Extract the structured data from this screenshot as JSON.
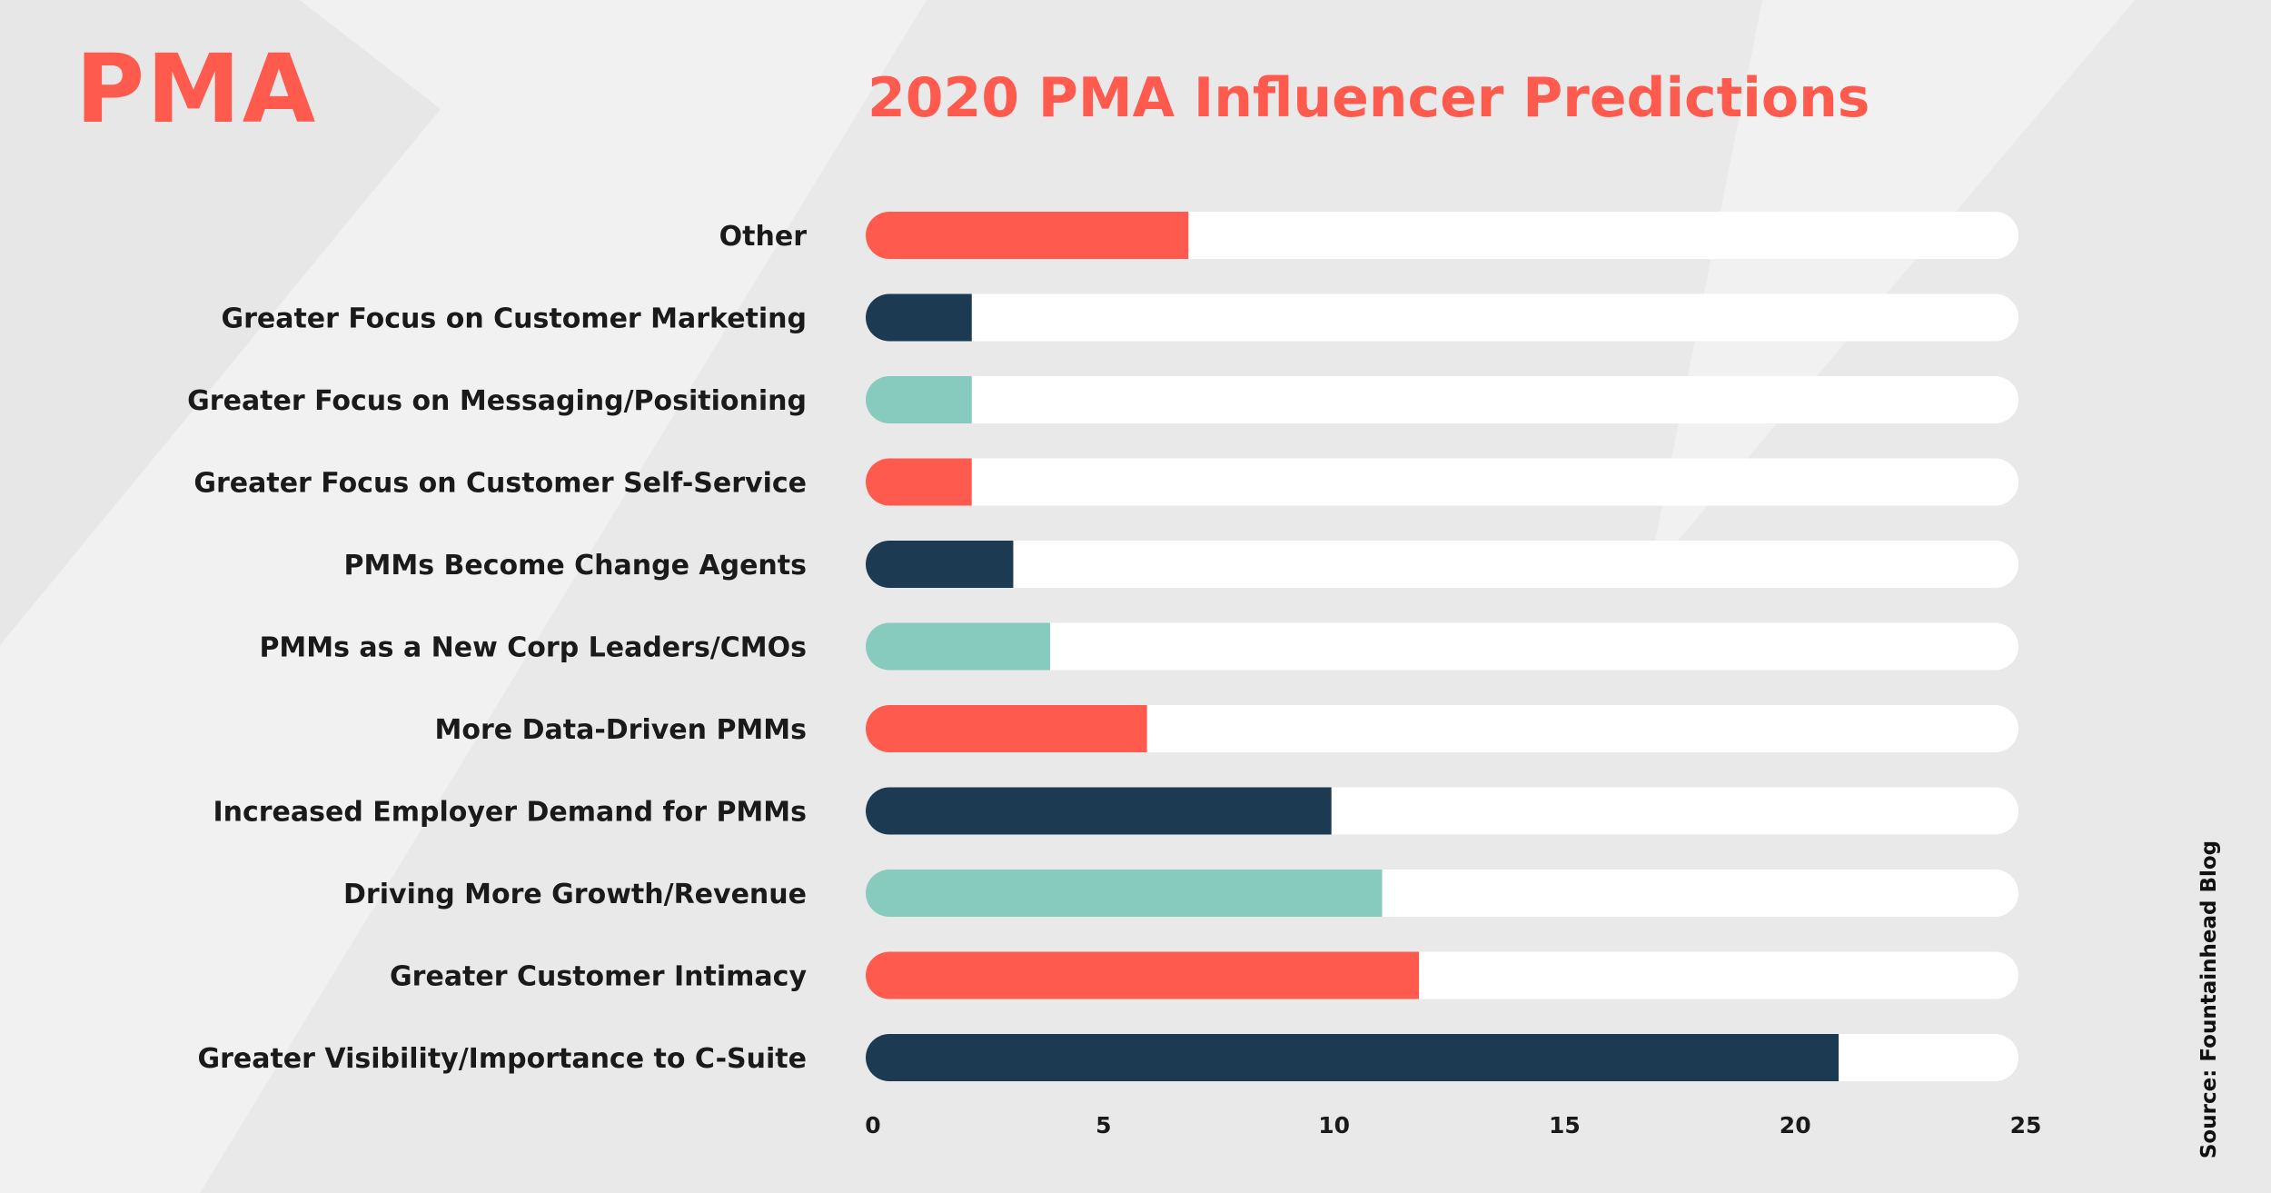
{
  "logo": {
    "text": "PMA"
  },
  "source": "Source: Fountainhead Blog",
  "colors": {
    "accent": "#ff5a4e",
    "navy": "#1c3a52",
    "teal": "#86cbbd",
    "track": "#ffffff",
    "label": "#1a1a1a",
    "background": "#f1f1f1"
  },
  "chart_data": {
    "type": "bar",
    "orientation": "horizontal",
    "title": "2020 PMA Influencer Predictions",
    "xlim": [
      0,
      25
    ],
    "ticks": [
      0,
      5,
      10,
      15,
      20,
      25
    ],
    "grid": false,
    "categories": [
      "Other",
      "Greater Focus on Customer Marketing",
      "Greater Focus on Messaging/Positioning",
      "Greater Focus on Customer Self-Service",
      "PMMs Become Change Agents",
      "PMMs as a New Corp Leaders/CMOs",
      "More Data-Driven PMMs",
      "Increased Employer Demand for PMMs",
      "Driving More Growth/Revenue",
      "Greater Customer Intimacy",
      "Greater Visibility/Importance to C-Suite"
    ],
    "values": [
      7,
      2.3,
      2.3,
      2.3,
      3.2,
      4,
      6.1,
      10.1,
      11.2,
      12,
      21.1
    ],
    "bar_colors": [
      "#ff5a4e",
      "#1c3a52",
      "#86cbbd",
      "#ff5a4e",
      "#1c3a52",
      "#86cbbd",
      "#ff5a4e",
      "#1c3a52",
      "#86cbbd",
      "#ff5a4e",
      "#1c3a52"
    ]
  }
}
